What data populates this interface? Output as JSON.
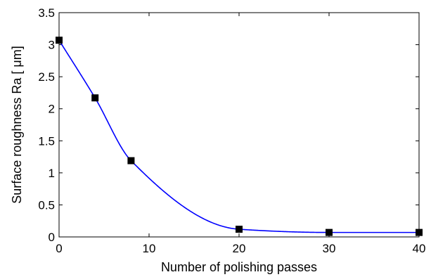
{
  "chart_data": {
    "type": "line",
    "title": "",
    "xlabel": "Number of polishing passes",
    "ylabel": "Surface roughness Ra [ μm]",
    "xlim": [
      0,
      40
    ],
    "ylim": [
      0,
      3.5
    ],
    "xticks": [
      "0",
      "10",
      "20",
      "30",
      "40"
    ],
    "yticks": [
      "0",
      "0.5",
      "1",
      "1.5",
      "2",
      "2.5",
      "3",
      "3.5"
    ],
    "grid": false,
    "legend": "none",
    "series": [
      {
        "marker": "square",
        "color": "#0000ff",
        "marker_color": "#000000",
        "x": [
          0,
          4,
          8,
          20,
          30,
          40
        ],
        "y": [
          3.07,
          2.17,
          1.19,
          0.12,
          0.07,
          0.07
        ]
      }
    ]
  }
}
